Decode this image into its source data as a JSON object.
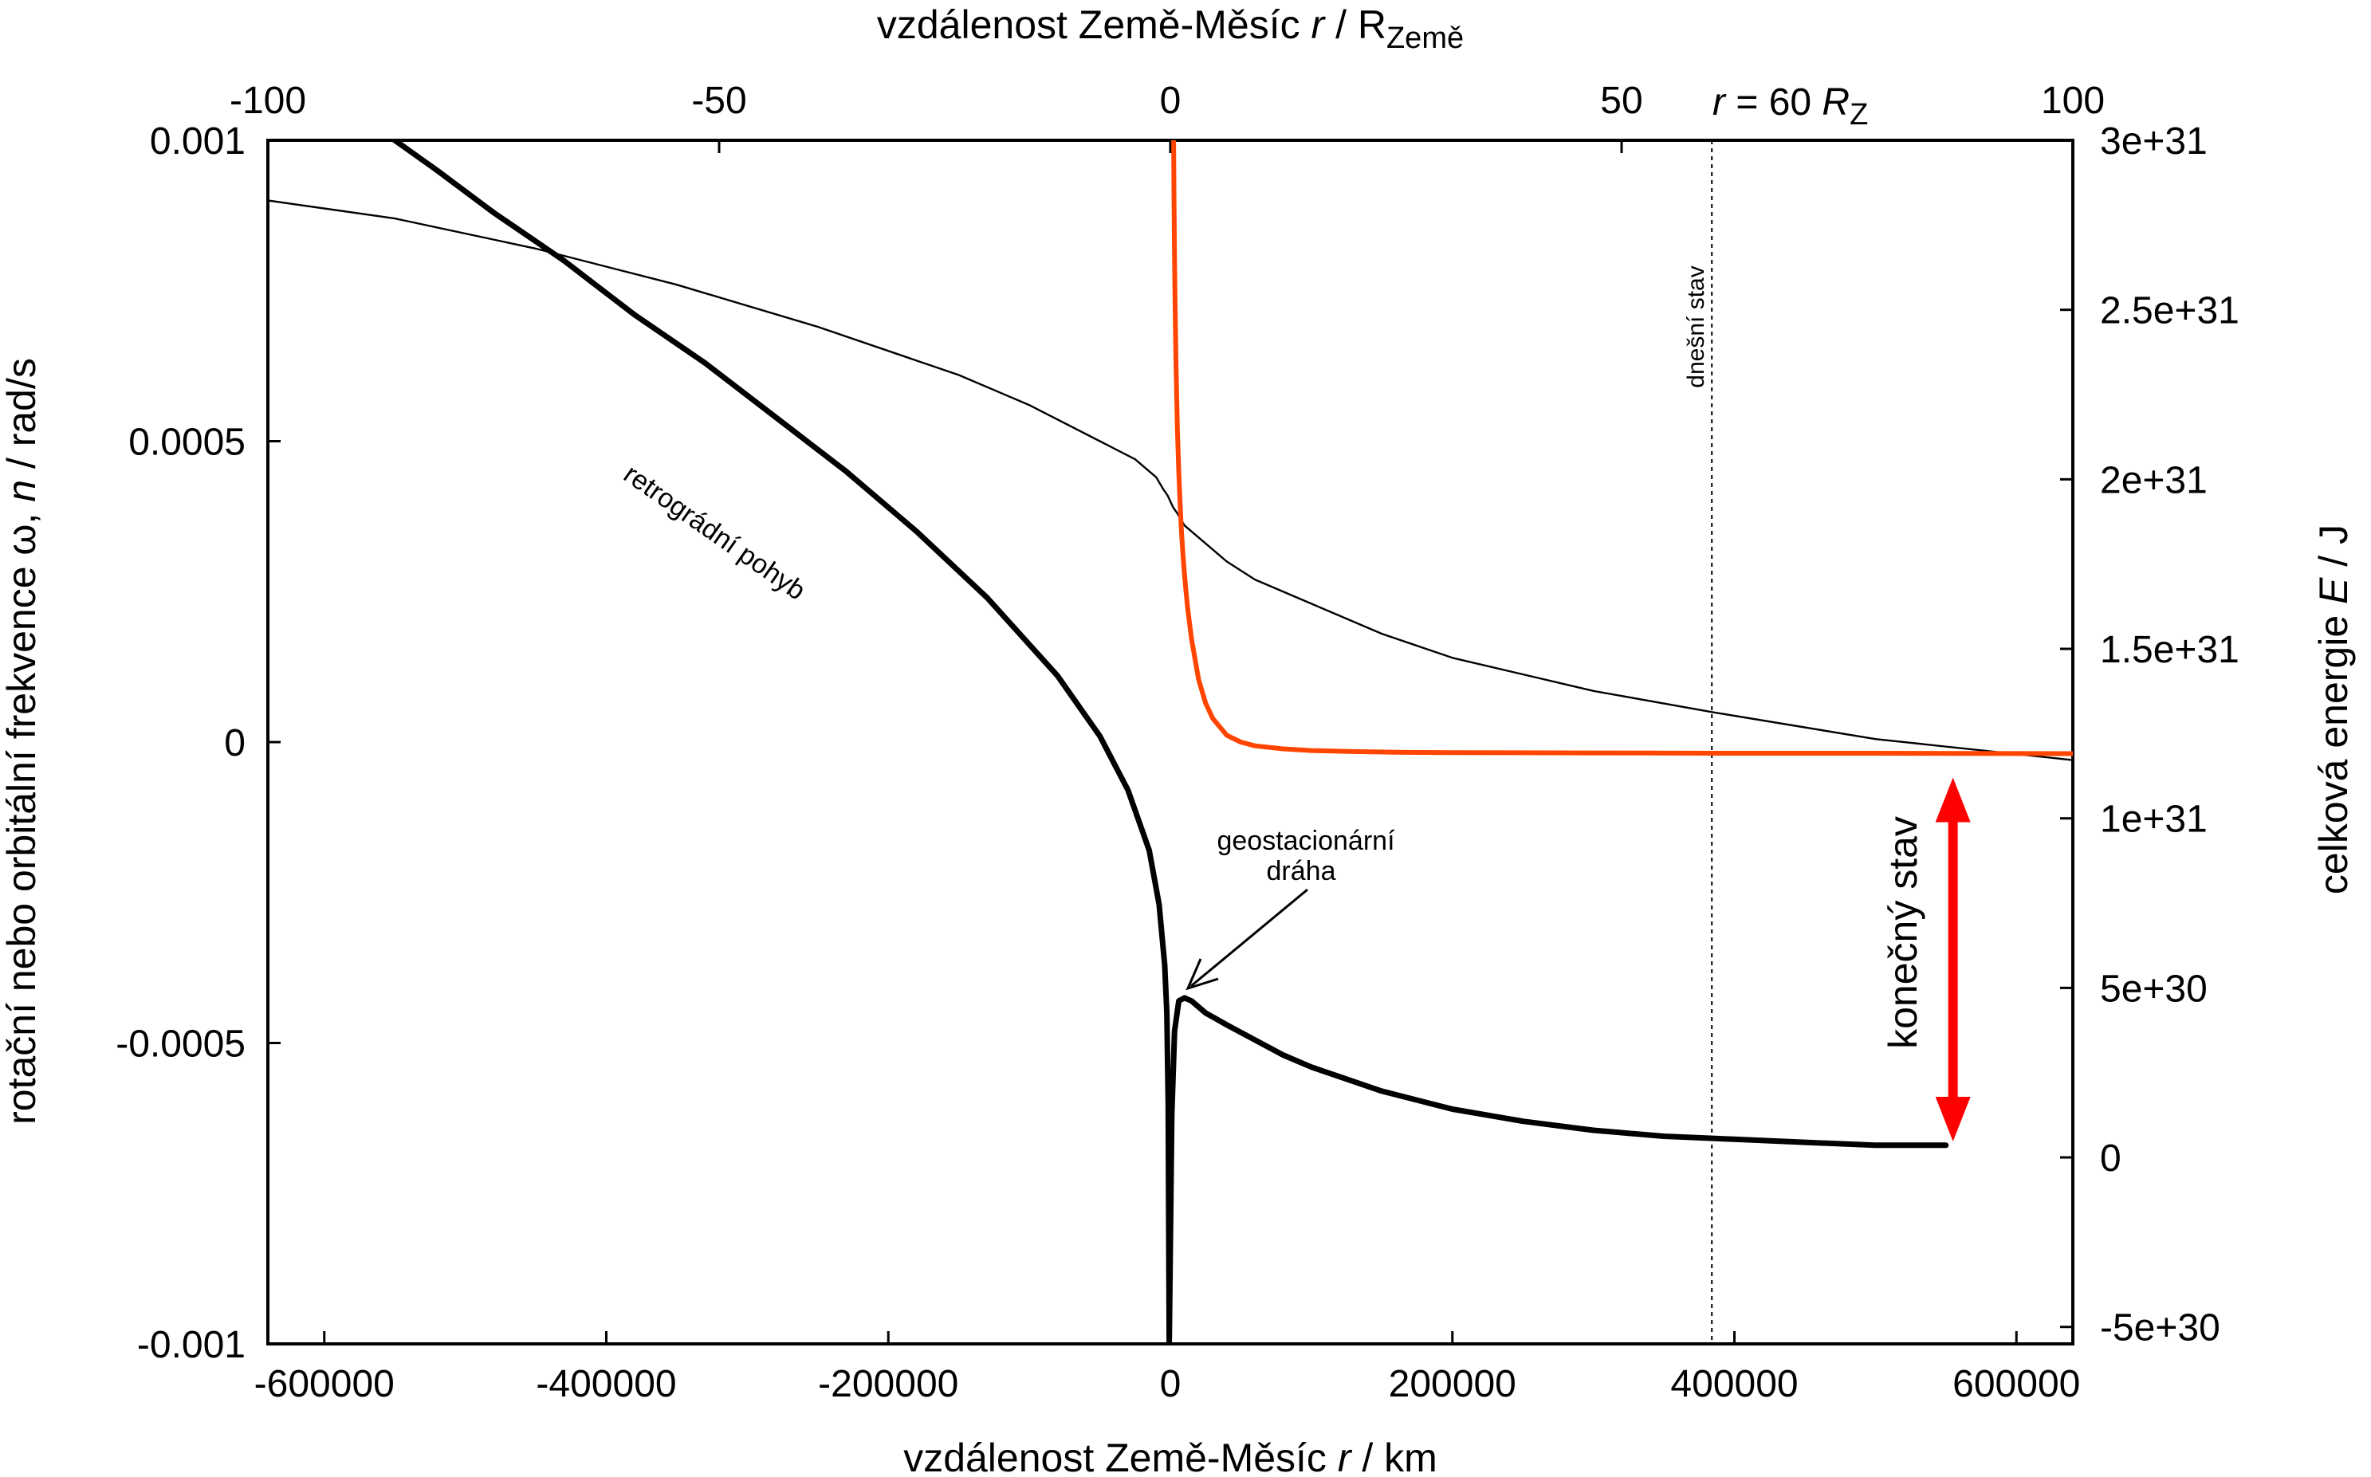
{
  "chart_data": {
    "type": "line",
    "x_bottom": {
      "label_prefix": "vzdálenost Země-Měsíc ",
      "label_var": "r",
      "label_suffix": " / km",
      "range": [
        -640000,
        640000
      ],
      "ticks": [
        -600000,
        -400000,
        -200000,
        0,
        200000,
        400000,
        600000
      ],
      "tick_labels": [
        "-600000",
        "-400000",
        "-200000",
        "0",
        "200000",
        "400000",
        "600000"
      ]
    },
    "x_top": {
      "label_prefix": "vzdálenost Země-Měsíc ",
      "label_var": "r",
      "label_mid": " / R",
      "label_sub": "Země",
      "range": [
        -100,
        100
      ],
      "ticks": [
        -100,
        -50,
        0,
        50,
        100
      ],
      "tick_labels": [
        "-100",
        "-50",
        "0",
        "50",
        "100"
      ]
    },
    "y_left": {
      "label_prefix": "rotační nebo orbitální frekvence  ω, ",
      "label_var": "n",
      "label_suffix": " / rad/s",
      "range": [
        -0.001,
        0.001
      ],
      "ticks": [
        -0.001,
        -0.0005,
        0,
        0.0005,
        0.001
      ],
      "tick_labels": [
        "-0.001",
        "-0.0005",
        "0",
        "0.0005",
        "0.001"
      ]
    },
    "y_right": {
      "label_prefix": "celková energie  ",
      "label_var": "E",
      "label_suffix": " / J",
      "range": [
        -5.5e+30,
        3e+31
      ],
      "ticks": [
        -5e+30,
        0,
        5e+30,
        1e+31,
        1.5e+31,
        2e+31,
        2.5e+31,
        3e+31
      ],
      "tick_labels": [
        "-5e+30",
        "0",
        "5e+30",
        "1e+31",
        "1.5e+31",
        "2e+31",
        "2.5e+31",
        "3e+31"
      ]
    },
    "series": [
      {
        "axis": "left",
        "color": "#000000",
        "x": [
          -640000,
          -550000,
          -450000,
          -350000,
          -250000,
          -150000,
          -100000,
          -50000,
          -25000,
          -10000,
          -5000,
          -2000,
          0,
          2000,
          5000,
          10000,
          20000,
          40000,
          60000,
          100000,
          150000,
          200000,
          300000,
          384000,
          500000,
          640000
        ],
        "y": [
          0.0009,
          0.00087,
          0.00082,
          0.00076,
          0.00069,
          0.00061,
          0.00056,
          0.0005,
          0.00047,
          0.00044,
          0.00042,
          0.00041,
          0.0004,
          0.00039,
          0.00038,
          0.00036,
          0.00034,
          0.0003,
          0.00027,
          0.00023,
          0.00018,
          0.00014,
          8.5e-05,
          5e-05,
          5e-06,
          -3e-05
        ]
      },
      {
        "axis": "left",
        "color": "#000000",
        "x": [
          -550000,
          -520000,
          -480000,
          -430000,
          -380000,
          -330000,
          -280000,
          -230000,
          -180000,
          -130000,
          -80000,
          -50000,
          -30000,
          -15000,
          -8000,
          -4000,
          -2500,
          -1500,
          -800,
          1000,
          3000,
          6000,
          10000,
          15000,
          25000,
          40000,
          60000,
          80000,
          100000,
          150000,
          200000,
          250000,
          300000,
          350000,
          400000,
          450000,
          500000,
          550000
        ],
        "y": [
          0.001,
          0.00095,
          0.00088,
          0.0008,
          0.00071,
          0.00063,
          0.00054,
          0.00045,
          0.00035,
          0.00024,
          0.00011,
          1e-05,
          -8e-05,
          -0.00018,
          -0.00027,
          -0.00037,
          -0.00045,
          -0.0006,
          -0.001,
          -0.00062,
          -0.00048,
          -0.00043,
          -0.000425,
          -0.00043,
          -0.00045,
          -0.00047,
          -0.000495,
          -0.00052,
          -0.00054,
          -0.00058,
          -0.00061,
          -0.00063,
          -0.000645,
          -0.000655,
          -0.00066,
          -0.000665,
          -0.00067,
          -0.00067
        ]
      },
      {
        "axis": "right",
        "color": "#ff4500",
        "x": [
          2300,
          2600,
          3000,
          3500,
          4000,
          5000,
          6000,
          7000,
          8000,
          9000,
          10000,
          12000,
          15000,
          20000,
          25000,
          30000,
          40000,
          50000,
          60000,
          80000,
          100000,
          130000,
          160000,
          200000,
          300000,
          400000,
          500000,
          640000
        ],
        "y": [
          3e+31,
          2.82e+31,
          2.64e+31,
          2.47e+31,
          2.34e+31,
          2.15e+31,
          2.02e+31,
          1.92e+31,
          1.84e+31,
          1.775e+31,
          1.72e+31,
          1.63e+31,
          1.53e+31,
          1.41e+31,
          1.34e+31,
          1.295e+31,
          1.245e+31,
          1.225e+31,
          1.214e+31,
          1.205e+31,
          1.2e+31,
          1.197e+31,
          1.195e+31,
          1.194e+31,
          1.193e+31,
          1.192e+31,
          1.192e+31,
          1.191e+31
        ]
      }
    ],
    "vline": {
      "x": 384000,
      "label": "dnešní stav"
    },
    "top_note": {
      "var": "r",
      "text": " = 60 ",
      "var2": "R",
      "sub": "Z"
    },
    "annotations": {
      "retro": "retrográdní pohyb",
      "geo_line1": "geostacionární",
      "geo_line2": "dráha",
      "final": "konečný stav"
    },
    "arrow_color": "#ff0000"
  }
}
